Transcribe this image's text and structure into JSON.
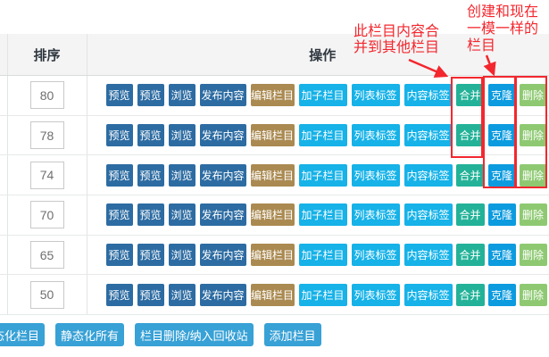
{
  "table": {
    "headers": {
      "sort": "排序",
      "actions": "操作"
    },
    "rows": [
      {
        "sort": "80"
      },
      {
        "sort": "78"
      },
      {
        "sort": "74"
      },
      {
        "sort": "70"
      },
      {
        "sort": "65"
      },
      {
        "sort": "50"
      }
    ],
    "row_buttons": [
      {
        "label": "预览",
        "name": "preview-button",
        "type": "primary",
        "w": "w30"
      },
      {
        "label": "预览",
        "name": "preview-button",
        "type": "primary",
        "w": "w30"
      },
      {
        "label": "浏览",
        "name": "browse-button",
        "type": "primary",
        "w": "w30"
      },
      {
        "label": "发布内容",
        "name": "publish-content-button",
        "type": "primary",
        "w": "w52"
      },
      {
        "label": "编辑栏目",
        "name": "edit-category-button",
        "type": "brown",
        "w": "w49"
      },
      {
        "label": "加子栏目",
        "name": "add-subcategory-button",
        "type": "cyan",
        "w": "w54"
      },
      {
        "label": "列表标签",
        "name": "list-tags-button",
        "type": "cyan",
        "w": "w54"
      },
      {
        "label": "内容标签",
        "name": "content-tags-button",
        "type": "cyan",
        "w": "w54",
        "gap": "m4"
      },
      {
        "label": "合并",
        "name": "merge-button",
        "type": "teal",
        "w": "w32",
        "gap": "m4"
      },
      {
        "label": "克隆",
        "name": "clone-button",
        "type": "blue",
        "w": "w31",
        "gap": "m4"
      },
      {
        "label": "删除",
        "name": "delete-button",
        "type": "green",
        "w": "w31",
        "gap": "m0"
      }
    ]
  },
  "footer_buttons": [
    {
      "label": "态化栏目",
      "name": "static-category-button"
    },
    {
      "label": "静态化所有",
      "name": "static-all-button"
    },
    {
      "label": "栏目删除/纳入回收站",
      "name": "delete-recycle-button"
    },
    {
      "label": "添加栏目",
      "name": "add-category-button"
    }
  ],
  "annotations": {
    "merge_note": "此栏目内容合\n并到其他栏目",
    "clone_note": "创建和现在\n一模一样的\n栏目"
  },
  "colors": {
    "primary_button": "#2d6ca2",
    "edit_button": "#aa8a51",
    "tag_button": "#16b2e8",
    "merge_button": "#23b298",
    "clone_button": "#0c9bdf",
    "delete_button": "#8ec972",
    "footer_button": "#38a1d6",
    "annotation_red": "#f3272e"
  }
}
